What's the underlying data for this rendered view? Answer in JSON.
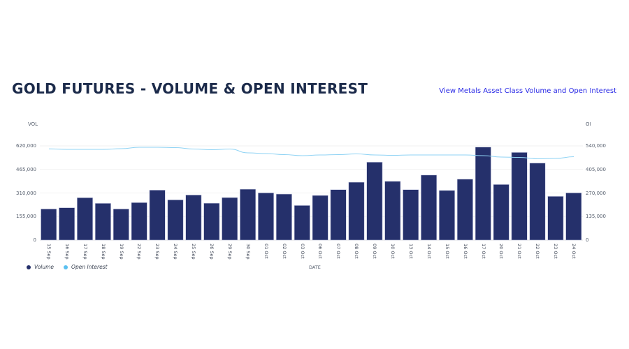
{
  "header": {
    "title": "GOLD FUTURES - VOLUME & OPEN INTEREST",
    "link_label": "View Metals Asset Class Volume and Open Interest"
  },
  "colors": {
    "volume_bar": "#25306b",
    "open_interest_line": "#8fd3f4",
    "title": "#1b2a4a",
    "link": "#2b2be6",
    "gridline": "#f2f2f2"
  },
  "chart_data": {
    "type": "bar",
    "title": "GOLD FUTURES - VOLUME & OPEN INTEREST",
    "xlabel": "DATE",
    "ylabel": "VOL",
    "y2label": "OI",
    "ylim": [
      0,
      620000
    ],
    "y2lim": [
      0,
      540000
    ],
    "yticks": [
      "0",
      "155,000",
      "310,000",
      "465,000",
      "620,000"
    ],
    "y2ticks": [
      "0",
      "135,000",
      "270,000",
      "405,000",
      "540,000"
    ],
    "grid": true,
    "legend_position": "bottom-left",
    "categories": [
      "15 Sep",
      "16 Sep",
      "17 Sep",
      "18 Sep",
      "19 Sep",
      "22 Sep",
      "23 Sep",
      "24 Sep",
      "25 Sep",
      "26 Sep",
      "29 Sep",
      "30 Sep",
      "01 Oct",
      "02 Oct",
      "03 Oct",
      "06 Oct",
      "07 Oct",
      "08 Oct",
      "09 Oct",
      "10 Oct",
      "13 Oct",
      "14 Oct",
      "15 Oct",
      "16 Oct",
      "17 Oct",
      "20 Oct",
      "21 Oct",
      "22 Oct",
      "23 Oct",
      "24 Oct"
    ],
    "series": [
      {
        "name": "Volume",
        "type": "bar",
        "axis": "left",
        "values": [
          205000,
          213000,
          279000,
          242000,
          205000,
          247000,
          329000,
          265000,
          297000,
          243000,
          280000,
          335000,
          311000,
          303000,
          228000,
          294000,
          332000,
          381000,
          513000,
          387000,
          332000,
          428000,
          327000,
          401000,
          612000,
          366000,
          577000,
          507000,
          288000,
          311000
        ]
      },
      {
        "name": "Open Interest",
        "type": "line",
        "axis": "right",
        "values": [
          523000,
          520000,
          520000,
          520000,
          524000,
          532000,
          532000,
          530000,
          522000,
          518000,
          522000,
          500000,
          496000,
          490000,
          484000,
          488000,
          490000,
          494000,
          488000,
          486000,
          488000,
          488000,
          488000,
          488000,
          484000,
          476000,
          474000,
          466000,
          468000,
          478000
        ]
      }
    ]
  },
  "legend": {
    "volume": "Volume",
    "open_interest": "Open Interest"
  },
  "axes": {
    "left_title": "VOL",
    "right_title": "OI",
    "x_title": "DATE"
  }
}
